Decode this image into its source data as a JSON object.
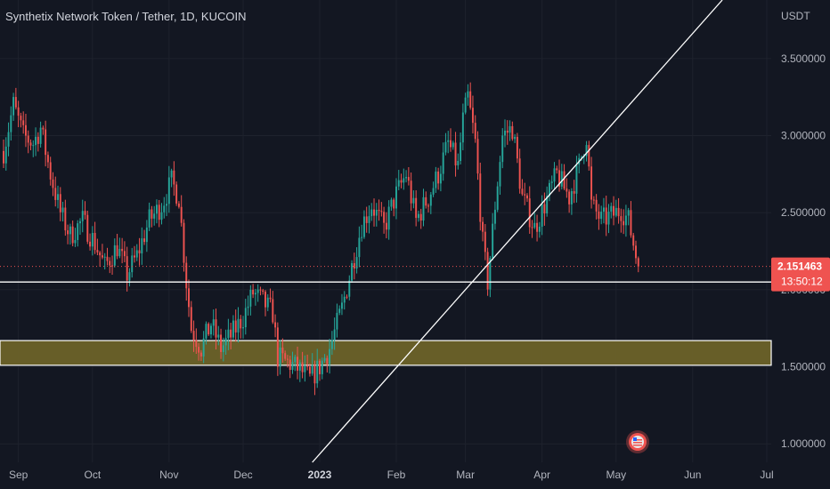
{
  "header": {
    "title": "Synthetix Network Token / Tether, 1D, KUCOIN"
  },
  "price_scale": {
    "unit": "USDT",
    "last_price": "2.151463",
    "countdown": "13:50:12"
  },
  "colors": {
    "background": "#131722",
    "up": "#26a69a",
    "down": "#ef5350",
    "zone_fill": "#6b6229",
    "line": "#ffffff",
    "price_line": "#ef5350"
  },
  "chart_data": {
    "type": "candlestick",
    "title": "Synthetix Network Token / Tether, 1D, KUCOIN",
    "ylim": [
      0.88,
      3.88
    ],
    "y_ticks": [
      "1.000000",
      "1.500000",
      "2.000000",
      "2.500000",
      "3.000000",
      "3.500000"
    ],
    "y_tick_values": [
      1.0,
      1.5,
      2.0,
      2.5,
      3.0,
      3.5
    ],
    "x_ticks": [
      "Sep",
      "Oct",
      "Nov",
      "Dec",
      "2023",
      "Feb",
      "Mar",
      "Apr",
      "May",
      "Jun",
      "Jul"
    ],
    "x_tick_dates": [
      "2022-09-01",
      "2022-10-01",
      "2022-11-01",
      "2022-12-01",
      "2023-01-01",
      "2023-02-01",
      "2023-03-01",
      "2023-04-01",
      "2023-05-01",
      "2023-06-01",
      "2023-07-01"
    ],
    "x_tick_bold": "2023",
    "date_range": [
      "2022-08-26",
      "2023-07-01"
    ],
    "last_date": "2023-05-10",
    "last_price": 2.151463,
    "close_path": [
      [
        "2022-08-26",
        2.9
      ],
      [
        "2022-08-30",
        3.2
      ],
      [
        "2022-09-03",
        3.0
      ],
      [
        "2022-09-07",
        2.95
      ],
      [
        "2022-09-10",
        3.05
      ],
      [
        "2022-09-14",
        2.75
      ],
      [
        "2022-09-18",
        2.5
      ],
      [
        "2022-09-22",
        2.35
      ],
      [
        "2022-09-27",
        2.45
      ],
      [
        "2022-10-02",
        2.3
      ],
      [
        "2022-10-06",
        2.15
      ],
      [
        "2022-10-11",
        2.28
      ],
      [
        "2022-10-15",
        2.1
      ],
      [
        "2022-10-19",
        2.22
      ],
      [
        "2022-10-24",
        2.45
      ],
      [
        "2022-10-29",
        2.55
      ],
      [
        "2022-11-02",
        2.7
      ],
      [
        "2022-11-05",
        2.6
      ],
      [
        "2022-11-08",
        2.05
      ],
      [
        "2022-11-10",
        1.75
      ],
      [
        "2022-11-14",
        1.62
      ],
      [
        "2022-11-18",
        1.78
      ],
      [
        "2022-11-22",
        1.62
      ],
      [
        "2022-11-26",
        1.7
      ],
      [
        "2022-12-01",
        1.82
      ],
      [
        "2022-12-05",
        1.98
      ],
      [
        "2022-12-09",
        1.92
      ],
      [
        "2022-12-13",
        1.85
      ],
      [
        "2022-12-15",
        1.56
      ],
      [
        "2022-12-20",
        1.52
      ],
      [
        "2022-12-24",
        1.48
      ],
      [
        "2022-12-28",
        1.42
      ],
      [
        "2023-01-01",
        1.5
      ],
      [
        "2023-01-05",
        1.62
      ],
      [
        "2023-01-10",
        1.88
      ],
      [
        "2023-01-14",
        2.15
      ],
      [
        "2023-01-18",
        2.42
      ],
      [
        "2023-01-22",
        2.55
      ],
      [
        "2023-01-27",
        2.4
      ],
      [
        "2023-02-01",
        2.62
      ],
      [
        "2023-02-05",
        2.75
      ],
      [
        "2023-02-09",
        2.45
      ],
      [
        "2023-02-14",
        2.6
      ],
      [
        "2023-02-18",
        2.75
      ],
      [
        "2023-02-22",
        2.95
      ],
      [
        "2023-02-26",
        2.8
      ],
      [
        "2023-02-28",
        3.1
      ],
      [
        "2023-03-02",
        3.25
      ],
      [
        "2023-03-05",
        2.95
      ],
      [
        "2023-03-08",
        2.3
      ],
      [
        "2023-03-10",
        2.05
      ],
      [
        "2023-03-13",
        2.55
      ],
      [
        "2023-03-16",
        3.0
      ],
      [
        "2023-03-20",
        3.05
      ],
      [
        "2023-03-24",
        2.6
      ],
      [
        "2023-03-29",
        2.4
      ],
      [
        "2023-04-02",
        2.55
      ],
      [
        "2023-04-07",
        2.75
      ],
      [
        "2023-04-12",
        2.6
      ],
      [
        "2023-04-16",
        2.8
      ],
      [
        "2023-04-19",
        3.0
      ],
      [
        "2023-04-21",
        2.55
      ],
      [
        "2023-04-25",
        2.45
      ],
      [
        "2023-04-29",
        2.48
      ],
      [
        "2023-05-03",
        2.52
      ],
      [
        "2023-05-06",
        2.45
      ],
      [
        "2023-05-08",
        2.3
      ],
      [
        "2023-05-10",
        2.151463
      ]
    ],
    "support_zone": [
      1.51,
      1.67
    ],
    "horizontal_line": 2.05,
    "trend_line": [
      [
        "2022-12-29",
        0.88
      ],
      [
        "2023-06-13",
        3.88
      ]
    ],
    "annotations": []
  }
}
